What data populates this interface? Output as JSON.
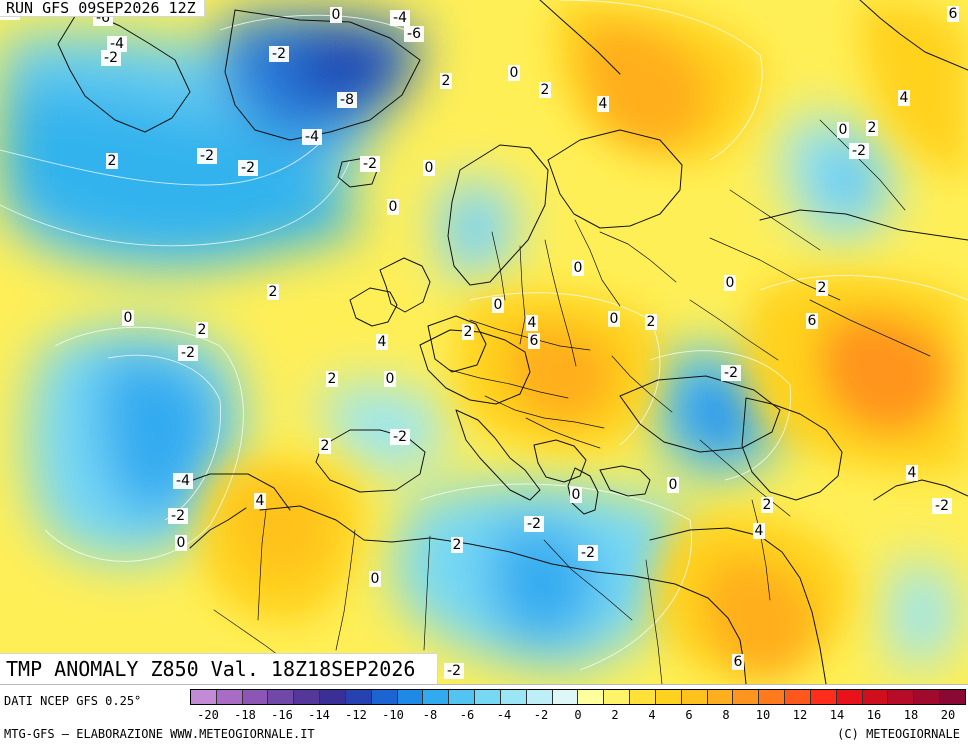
{
  "header": {
    "run_label": "RUN GFS 09SEP2026 12Z"
  },
  "map": {
    "title": "TMP ANOMALY Z850 Val. 18Z18SEP2026",
    "labels": [
      {
        "text": "-2"
      },
      {
        "text": "-6"
      },
      {
        "text": "-4"
      },
      {
        "text": "-2"
      },
      {
        "text": "0"
      },
      {
        "text": "-4"
      },
      {
        "text": "-6"
      },
      {
        "text": "-2"
      },
      {
        "text": "-8"
      },
      {
        "text": "2"
      },
      {
        "text": "0"
      },
      {
        "text": "-4"
      },
      {
        "text": "-2"
      },
      {
        "text": "-2"
      },
      {
        "text": "-2"
      },
      {
        "text": "0"
      },
      {
        "text": "0"
      },
      {
        "text": "2"
      },
      {
        "text": "2"
      },
      {
        "text": "0"
      },
      {
        "text": "-2"
      },
      {
        "text": "2"
      },
      {
        "text": "4"
      },
      {
        "text": "0"
      },
      {
        "text": "2"
      },
      {
        "text": "0"
      },
      {
        "text": "4"
      },
      {
        "text": "6"
      },
      {
        "text": "2"
      },
      {
        "text": "0"
      },
      {
        "text": "-2"
      },
      {
        "text": "-2"
      },
      {
        "text": "-4"
      },
      {
        "text": "-2"
      },
      {
        "text": "0"
      },
      {
        "text": "4"
      },
      {
        "text": "2"
      },
      {
        "text": "0"
      },
      {
        "text": "-2"
      },
      {
        "text": "2"
      },
      {
        "text": "0"
      },
      {
        "text": "-2"
      },
      {
        "text": "0"
      },
      {
        "text": "6"
      },
      {
        "text": "4"
      },
      {
        "text": "2"
      },
      {
        "text": "0"
      },
      {
        "text": "0"
      },
      {
        "text": "2"
      },
      {
        "text": "-2"
      },
      {
        "text": "0"
      },
      {
        "text": "4"
      },
      {
        "text": "2"
      },
      {
        "text": "6"
      },
      {
        "text": "-2"
      },
      {
        "text": "2"
      },
      {
        "text": "4"
      },
      {
        "text": "4"
      },
      {
        "text": "2"
      },
      {
        "text": "6"
      },
      {
        "text": "-2"
      }
    ]
  },
  "legend": {
    "source_label": "DATI NCEP GFS 0.25°",
    "ticks": [
      "-20",
      "-18",
      "-16",
      "-14",
      "-12",
      "-10",
      "-8",
      "-6",
      "-4",
      "-2",
      "0",
      "2",
      "4",
      "6",
      "8",
      "10",
      "12",
      "14",
      "16",
      "18",
      "20"
    ],
    "colors": [
      "#c38ad6",
      "#a86cc4",
      "#8d55b6",
      "#7048a8",
      "#55369b",
      "#3a2f97",
      "#2542b0",
      "#1b64d2",
      "#1f89e6",
      "#31aaf0",
      "#53c3f2",
      "#77d8f4",
      "#9ae6f5",
      "#beeff6",
      "#def8f7",
      "#ffff9e",
      "#fff36a",
      "#ffe13a",
      "#ffd21f",
      "#ffc21c",
      "#ffae1f",
      "#ff951f",
      "#ff791d",
      "#ff581c",
      "#ff2d1a",
      "#ea121a",
      "#d00f1e",
      "#b70c27",
      "#a00a2d",
      "#8a0834"
    ]
  },
  "footer": {
    "credit_left": "MTG-GFS — ELABORAZIONE WWW.METEOGIORNALE.IT",
    "credit_right": "(C) METEOGIORNALE"
  }
}
